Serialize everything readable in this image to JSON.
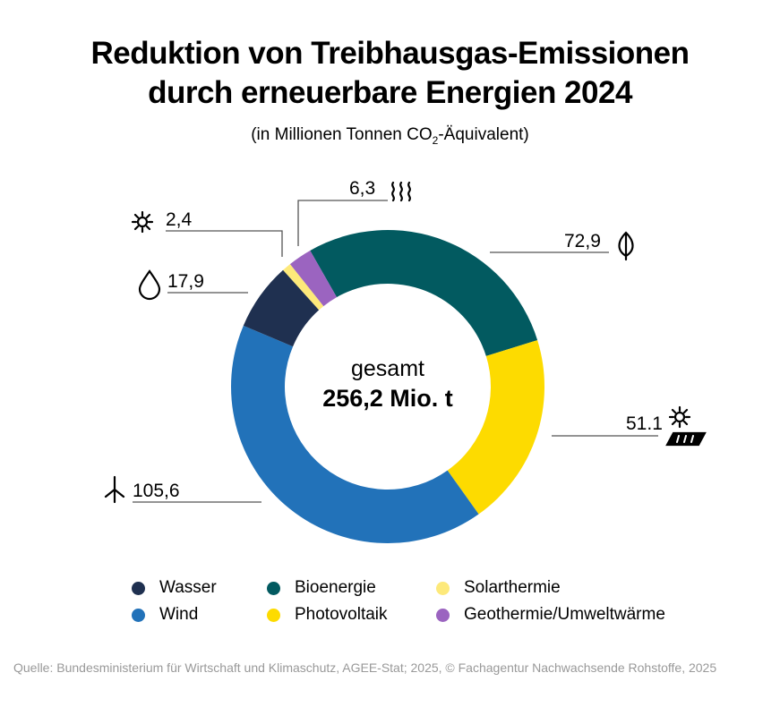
{
  "title_line1": "Reduktion von Treibhausgas-Emissionen",
  "title_line2": "durch erneuerbare Energien 2024",
  "subtitle_pre": "(in Millionen Tonnen CO",
  "subtitle_sub": "2",
  "subtitle_post": "-Äquivalent)",
  "chart_data": {
    "type": "pie",
    "donut": true,
    "center_label": "gesamt",
    "center_value": "256,2 Mio. t",
    "slices": [
      {
        "name": "Bioenergie",
        "value": 72.9,
        "label": "72,9",
        "color": "#025a60",
        "icon": "leaf-icon"
      },
      {
        "name": "Photovoltaik",
        "value": 51.1,
        "label": "51.1",
        "color": "#fddb00",
        "icon": "solar-panel-icon"
      },
      {
        "name": "Wind",
        "value": 105.6,
        "label": "105,6",
        "color": "#2272b9",
        "icon": "wind-turbine-icon"
      },
      {
        "name": "Wasser",
        "value": 17.9,
        "label": "17,9",
        "color": "#1f3050",
        "icon": "water-drop-icon"
      },
      {
        "name": "Solarthermie",
        "value": 2.4,
        "label": "2,4",
        "color": "#fde97a",
        "icon": "sun-icon"
      },
      {
        "name": "Geothermie/Umweltwärme",
        "value": 6.3,
        "label": "6,3",
        "color": "#9b64c0",
        "icon": "heat-waves-icon"
      }
    ],
    "legend_placement": "bottom"
  },
  "legend": [
    "Wasser",
    "Bioenergie",
    "Solarthermie",
    "Wind",
    "Photovoltaik",
    "Geothermie/Umweltwärme"
  ],
  "source": "Quelle: Bundesministerium für Wirtschaft und Klimaschutz, AGEE-Stat; 2025, © Fachagentur Nachwachsende Rohstoffe, 2025"
}
